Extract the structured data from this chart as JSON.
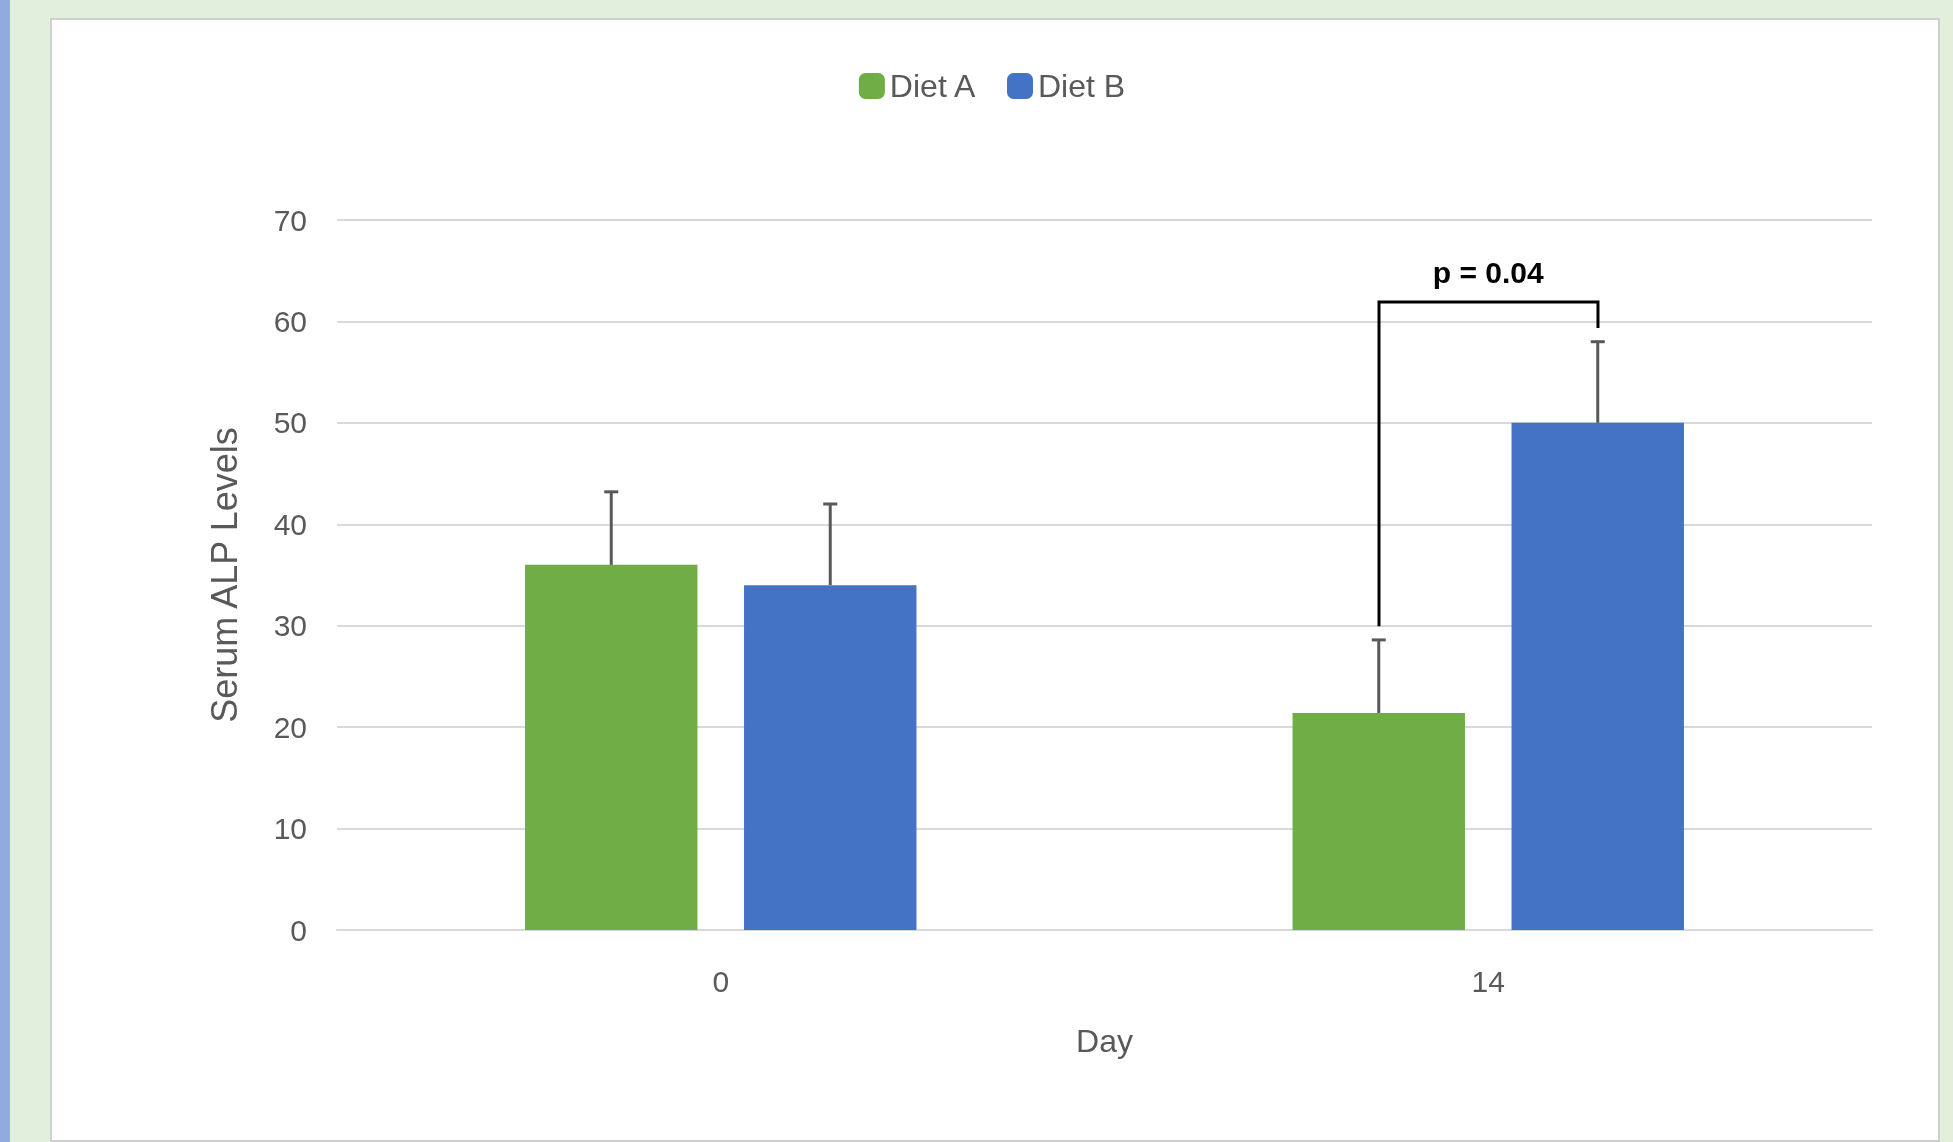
{
  "chart_data": {
    "type": "bar",
    "xlabel": "Day",
    "ylabel": "Serum ALP Levels",
    "categories": [
      "0",
      "14"
    ],
    "series": [
      {
        "name": "Diet A",
        "color": "#70ad47",
        "values": [
          36,
          21.4
        ],
        "errors": [
          [
            36,
            43.2
          ],
          [
            21.4,
            28.6
          ]
        ]
      },
      {
        "name": "Diet B",
        "color": "#4472c4",
        "values": [
          34,
          50
        ],
        "errors": [
          [
            34,
            42
          ],
          [
            50,
            58
          ]
        ]
      }
    ],
    "ylim": [
      0,
      70
    ],
    "yticks": [
      0,
      10,
      20,
      30,
      40,
      50,
      60,
      70
    ],
    "grid": "y",
    "legend": "top",
    "annotations": [
      "p = 0.04"
    ]
  }
}
